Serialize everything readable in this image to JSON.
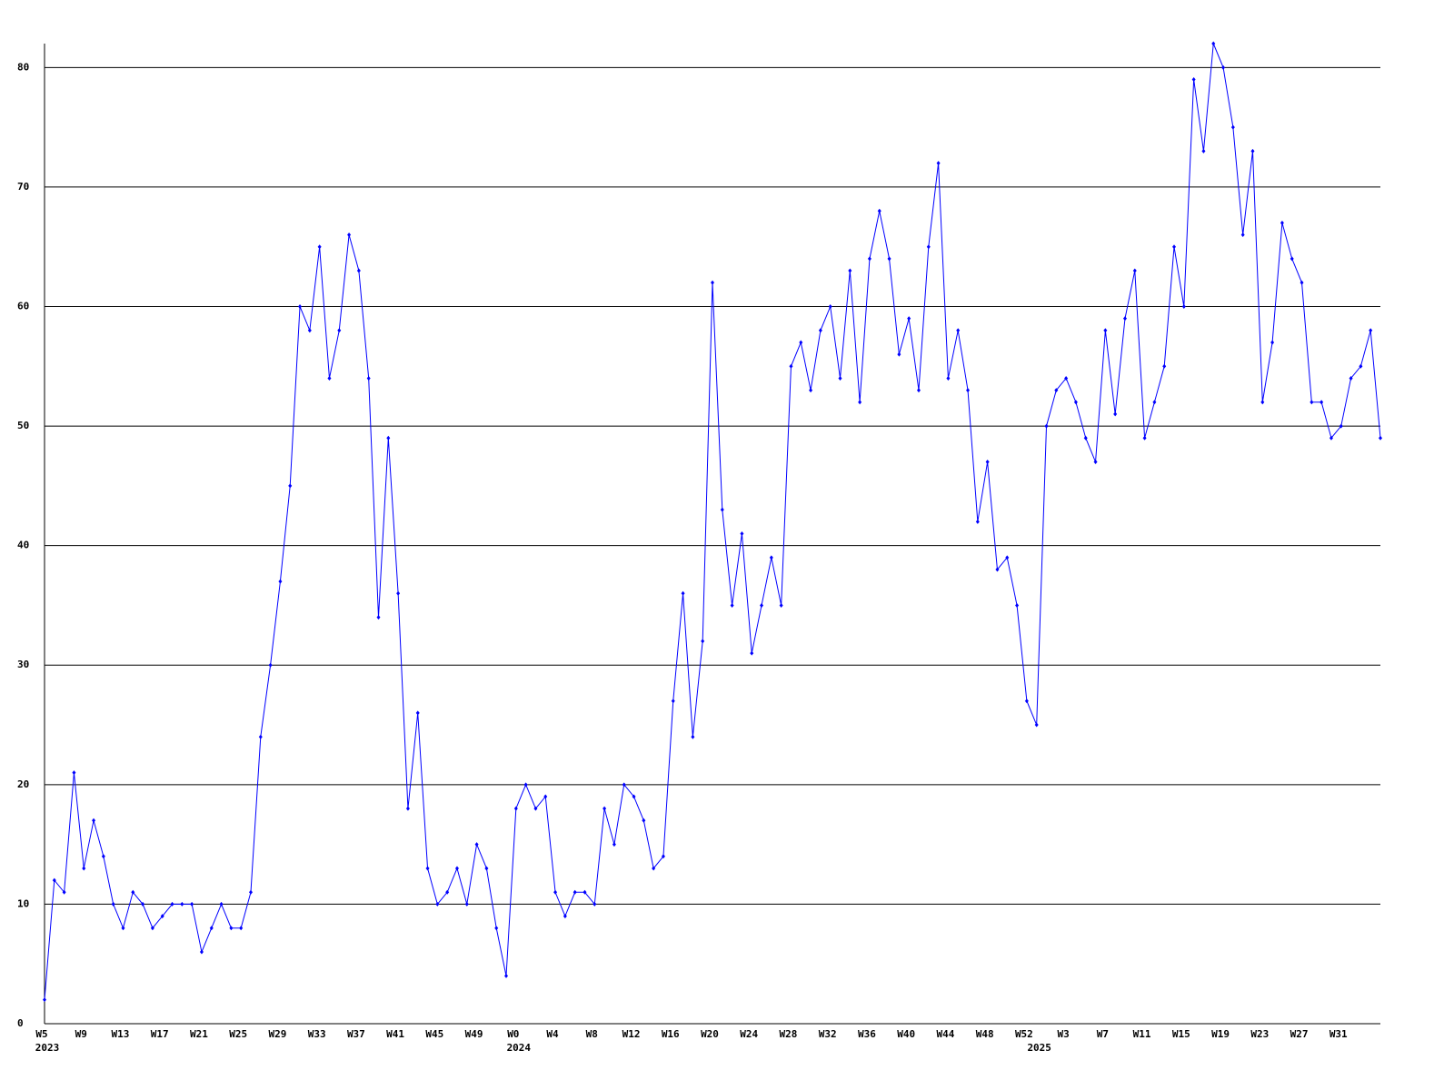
{
  "chart_data": {
    "type": "line",
    "color": "#0000ff",
    "grid": true,
    "ylim": [
      0,
      82
    ],
    "yticks": [
      0,
      10,
      20,
      30,
      40,
      50,
      60,
      70,
      80
    ],
    "categories": [
      "W5",
      null,
      null,
      null,
      "W9",
      null,
      null,
      null,
      "W13",
      null,
      null,
      null,
      "W17",
      null,
      null,
      null,
      "W21",
      null,
      null,
      null,
      "W25",
      null,
      null,
      null,
      "W29",
      null,
      null,
      null,
      "W33",
      null,
      null,
      null,
      "W37",
      null,
      null,
      null,
      "W41",
      null,
      null,
      null,
      "W45",
      null,
      null,
      null,
      "W49",
      null,
      null,
      null,
      "W0",
      null,
      null,
      null,
      "W4",
      null,
      null,
      null,
      "W8",
      null,
      null,
      null,
      "W12",
      null,
      null,
      null,
      "W16",
      null,
      null,
      null,
      "W20",
      null,
      null,
      null,
      "W24",
      null,
      null,
      null,
      "W28",
      null,
      null,
      null,
      "W32",
      null,
      null,
      null,
      "W36",
      null,
      null,
      null,
      "W40",
      null,
      null,
      null,
      "W44",
      null,
      null,
      null,
      "W48",
      null,
      null,
      null,
      "W52",
      null,
      null,
      null,
      "W3",
      null,
      null,
      null,
      "W7",
      null,
      null,
      null,
      "W11",
      null,
      null,
      null,
      "W15",
      null,
      null,
      null,
      "W19",
      null,
      null,
      null,
      "W23",
      null,
      null,
      null,
      "W27",
      null,
      null,
      null,
      "W31",
      null,
      null,
      null,
      null
    ],
    "category_years": [
      "2023",
      null,
      null,
      null,
      null,
      null,
      null,
      null,
      null,
      null,
      null,
      null,
      null,
      null,
      null,
      null,
      null,
      null,
      null,
      null,
      null,
      null,
      null,
      null,
      null,
      null,
      null,
      null,
      null,
      null,
      null,
      null,
      null,
      null,
      null,
      null,
      null,
      null,
      null,
      null,
      null,
      null,
      null,
      null,
      null,
      null,
      null,
      null,
      "2024",
      null,
      null,
      null,
      null,
      null,
      null,
      null,
      null,
      null,
      null,
      null,
      null,
      null,
      null,
      null,
      null,
      null,
      null,
      null,
      null,
      null,
      null,
      null,
      null,
      null,
      null,
      null,
      null,
      null,
      null,
      null,
      null,
      null,
      null,
      null,
      null,
      null,
      null,
      null,
      null,
      null,
      null,
      null,
      null,
      null,
      null,
      null,
      null,
      null,
      null,
      null,
      null,
      "2025",
      null,
      null,
      null,
      null,
      null,
      null,
      null,
      null,
      null,
      null,
      null,
      null,
      null,
      null,
      null,
      null,
      null,
      null,
      null,
      null,
      null,
      null,
      null,
      null,
      null,
      null,
      null,
      null,
      null,
      null,
      null,
      null,
      null,
      null,
      null
    ],
    "values": [
      2,
      12,
      11,
      21,
      13,
      17,
      14,
      10,
      8,
      11,
      10,
      8,
      9,
      10,
      10,
      10,
      6,
      8,
      10,
      8,
      8,
      11,
      24,
      30,
      37,
      45,
      60,
      58,
      65,
      54,
      58,
      66,
      63,
      54,
      34,
      49,
      36,
      18,
      26,
      13,
      10,
      11,
      13,
      10,
      15,
      13,
      8,
      4,
      18,
      20,
      18,
      19,
      11,
      9,
      11,
      11,
      10,
      18,
      15,
      20,
      19,
      17,
      13,
      14,
      27,
      36,
      24,
      32,
      62,
      43,
      35,
      41,
      31,
      35,
      39,
      35,
      55,
      57,
      53,
      58,
      60,
      54,
      63,
      52,
      64,
      68,
      64,
      56,
      59,
      53,
      65,
      72,
      54,
      58,
      53,
      42,
      47,
      38,
      39,
      35,
      27,
      25,
      50,
      53,
      54,
      52,
      49,
      47,
      58,
      51,
      59,
      63,
      49,
      52,
      55,
      65,
      60,
      79,
      73,
      82,
      80,
      75,
      66,
      73,
      52,
      57,
      67,
      64,
      62,
      52,
      52,
      49,
      50,
      54,
      55,
      58,
      49
    ]
  }
}
